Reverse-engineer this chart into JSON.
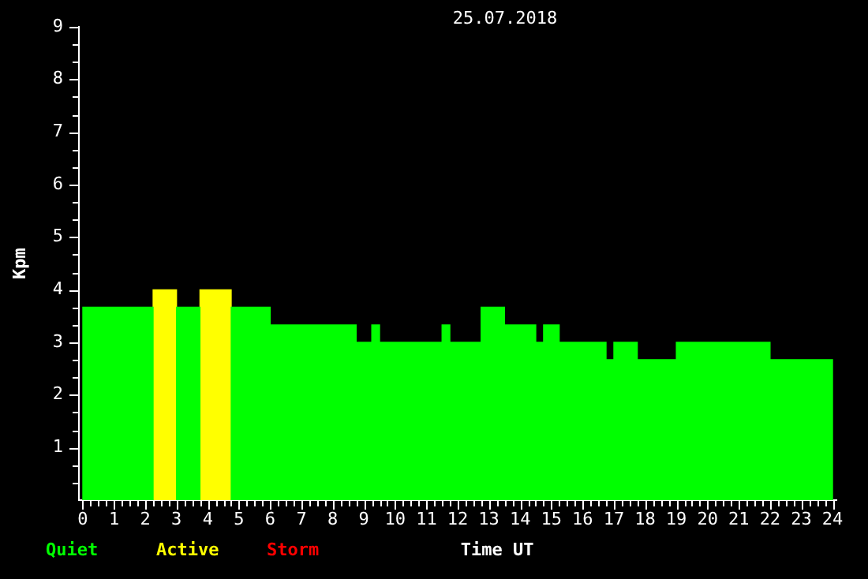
{
  "chart_data": {
    "type": "histogram",
    "title": "25.07.2018",
    "xlabel": "Time UT",
    "ylabel": "Kpm",
    "legend": "bottom left",
    "grid": false,
    "bins": [
      0,
      2.25,
      3,
      3.75,
      4.75,
      6,
      8.75,
      9.25,
      9.5,
      11.5,
      11.75,
      12.75,
      13.5,
      14.5,
      14.75,
      15.25,
      16.75,
      17,
      17.75,
      19,
      22,
      24
    ],
    "series": [
      {
        "name": "Quiet",
        "color": "#00ff00",
        "values": [
          3.67,
          null,
          3.67,
          null,
          3.67,
          3.33,
          3,
          3.33,
          3,
          3.33,
          3,
          3.67,
          3.33,
          3,
          3.33,
          3,
          2.67,
          3,
          2.67,
          3,
          2.67
        ]
      },
      {
        "name": "Active",
        "color": "#ffff00",
        "values": [
          null,
          4,
          null,
          4,
          null,
          null,
          null,
          null,
          null,
          null,
          null,
          null,
          null,
          null,
          null,
          null,
          null,
          null,
          null,
          null,
          null
        ]
      },
      {
        "name": "Storm",
        "color": "#ff0000",
        "values": [
          0,
          0,
          0,
          0,
          0,
          0,
          0,
          0,
          0,
          0,
          0,
          0,
          0,
          0,
          0,
          0,
          0,
          0,
          0,
          0,
          0
        ]
      }
    ],
    "xlim": [
      0,
      24
    ],
    "xticks": [
      0,
      {
        "value": 0.25,
        "label": null
      },
      {
        "value": 0.5,
        "label": null
      },
      {
        "value": 0.75,
        "label": null
      },
      1,
      {
        "value": 1.25,
        "label": null
      },
      {
        "value": 1.5,
        "label": null
      },
      {
        "value": 1.75,
        "label": null
      },
      2,
      {
        "value": 2.25,
        "label": null
      },
      {
        "value": 2.5,
        "label": null
      },
      {
        "value": 2.75,
        "label": null
      },
      3,
      {
        "value": 3.25,
        "label": null
      },
      {
        "value": 3.5,
        "label": null
      },
      {
        "value": 3.75,
        "label": null
      },
      4,
      {
        "value": 4.25,
        "label": null
      },
      {
        "value": 4.5,
        "label": null
      },
      {
        "value": 4.75,
        "label": null
      },
      5,
      {
        "value": 5.25,
        "label": null
      },
      {
        "value": 5.5,
        "label": null
      },
      {
        "value": 5.75,
        "label": null
      },
      6,
      {
        "value": 6.25,
        "label": null
      },
      {
        "value": 6.5,
        "label": null
      },
      {
        "value": 6.75,
        "label": null
      },
      7,
      {
        "value": 7.25,
        "label": null
      },
      {
        "value": 7.5,
        "label": null
      },
      {
        "value": 7.75,
        "label": null
      },
      8,
      {
        "value": 8.25,
        "label": null
      },
      {
        "value": 8.5,
        "label": null
      },
      {
        "value": 8.75,
        "label": null
      },
      9,
      {
        "value": 9.25,
        "label": null
      },
      {
        "value": 9.5,
        "label": null
      },
      {
        "value": 9.75,
        "label": null
      },
      10,
      {
        "value": 10.25,
        "label": null
      },
      {
        "value": 10.5,
        "label": null
      },
      {
        "value": 10.75,
        "label": null
      },
      11,
      {
        "value": 11.25,
        "label": null
      },
      {
        "value": 11.5,
        "label": null
      },
      {
        "value": 11.75,
        "label": null
      },
      12,
      {
        "value": 12.25,
        "label": null
      },
      {
        "value": 12.5,
        "label": null
      },
      {
        "value": 12.75,
        "label": null
      },
      13,
      {
        "value": 13.25,
        "label": null
      },
      {
        "value": 13.5,
        "label": null
      },
      {
        "value": 13.75,
        "label": null
      },
      14,
      {
        "value": 14.25,
        "label": null
      },
      {
        "value": 14.5,
        "label": null
      },
      {
        "value": 14.75,
        "label": null
      },
      15,
      {
        "value": 15.25,
        "label": null
      },
      {
        "value": 15.5,
        "label": null
      },
      {
        "value": 15.75,
        "label": null
      },
      16,
      {
        "value": 16.25,
        "label": null
      },
      {
        "value": 16.5,
        "label": null
      },
      {
        "value": 16.75,
        "label": null
      },
      17,
      {
        "value": 17.25,
        "label": null
      },
      {
        "value": 17.5,
        "label": null
      },
      {
        "value": 17.75,
        "label": null
      },
      18,
      {
        "value": 18.25,
        "label": null
      },
      {
        "value": 18.5,
        "label": null
      },
      {
        "value": 18.75,
        "label": null
      },
      19,
      {
        "value": 19.25,
        "label": null
      },
      {
        "value": 19.5,
        "label": null
      },
      {
        "value": 19.75,
        "label": null
      },
      20,
      {
        "value": 20.25,
        "label": null
      },
      {
        "value": 20.5,
        "label": null
      },
      {
        "value": 20.75,
        "label": null
      },
      21,
      {
        "value": 21.25,
        "label": null
      },
      {
        "value": 21.5,
        "label": null
      },
      {
        "value": 21.75,
        "label": null
      },
      22,
      {
        "value": 22.25,
        "label": null
      },
      {
        "value": 22.5,
        "label": null
      },
      {
        "value": 22.75,
        "label": null
      },
      23,
      {
        "value": 23.25,
        "label": null
      },
      {
        "value": 23.5,
        "label": null
      },
      {
        "value": 23.75,
        "label": null
      },
      24
    ],
    "ylim": [
      0,
      9
    ],
    "yticks": [
      {
        "value": 0.33,
        "label": null
      },
      {
        "value": 0.67,
        "label": null
      },
      1,
      {
        "value": 1.33,
        "label": null
      },
      {
        "value": 1.67,
        "label": null
      },
      2,
      {
        "value": 2.33,
        "label": null
      },
      {
        "value": 2.67,
        "label": null
      },
      3,
      {
        "value": 3.33,
        "label": null
      },
      {
        "value": 3.67,
        "label": null
      },
      4,
      {
        "value": 4.33,
        "label": null
      },
      {
        "value": 4.67,
        "label": null
      },
      5,
      {
        "value": 5.33,
        "label": null
      },
      {
        "value": 5.67,
        "label": null
      },
      6,
      {
        "value": 6.33,
        "label": null
      },
      {
        "value": 6.67,
        "label": null
      },
      7,
      {
        "value": 7.33,
        "label": null
      },
      {
        "value": 7.67,
        "label": null
      },
      8,
      {
        "value": 8.33,
        "label": null
      },
      {
        "value": 8.67,
        "label": null
      },
      9
    ]
  }
}
